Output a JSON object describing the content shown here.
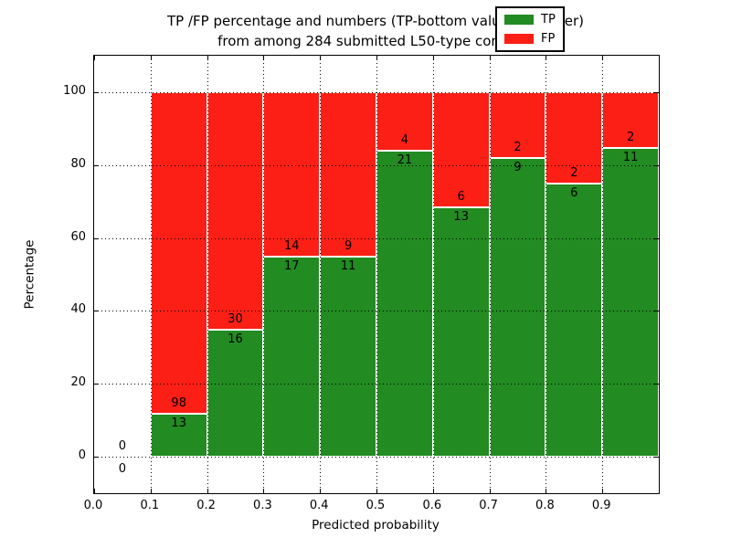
{
  "chart_data": {
    "type": "bar",
    "stacked": true,
    "title_line1": "TP /FP percentage and numbers (TP-bottom value, FP-upper)",
    "title_line2": "from among 284 submitted L50-type contacts",
    "xlabel": "Predicted probability",
    "ylabel": "Percentage",
    "xlim": [
      0.0,
      1.0
    ],
    "ylim": [
      -10,
      110
    ],
    "x_tick_values": [
      0.0,
      0.1,
      0.2,
      0.3,
      0.4,
      0.5,
      0.6,
      0.7,
      0.8,
      0.9
    ],
    "x_tick_labels": [
      "0.0",
      "0.1",
      "0.2",
      "0.3",
      "0.4",
      "0.5",
      "0.6",
      "0.7",
      "0.8",
      "0.9"
    ],
    "x_grid_values": [
      0.1,
      0.2,
      0.3,
      0.4,
      0.5,
      0.6,
      0.7,
      0.8,
      0.9
    ],
    "y_tick_values": [
      0,
      20,
      40,
      60,
      80,
      100
    ],
    "y_tick_labels": [
      "0",
      "20",
      "40",
      "60",
      "80",
      "100"
    ],
    "grid": "dotted",
    "legend_position": "upper right",
    "bins": [
      {
        "range": [
          0.0,
          0.1
        ],
        "tp": 0,
        "fp": 0
      },
      {
        "range": [
          0.1,
          0.2
        ],
        "tp": 13,
        "fp": 98
      },
      {
        "range": [
          0.2,
          0.3
        ],
        "tp": 16,
        "fp": 30
      },
      {
        "range": [
          0.3,
          0.4
        ],
        "tp": 17,
        "fp": 14
      },
      {
        "range": [
          0.4,
          0.5
        ],
        "tp": 11,
        "fp": 9
      },
      {
        "range": [
          0.5,
          0.6
        ],
        "tp": 21,
        "fp": 4
      },
      {
        "range": [
          0.6,
          0.7
        ],
        "tp": 13,
        "fp": 6
      },
      {
        "range": [
          0.7,
          0.8
        ],
        "tp": 9,
        "fp": 2
      },
      {
        "range": [
          0.8,
          0.9
        ],
        "tp": 6,
        "fp": 2
      },
      {
        "range": [
          0.9,
          1.0
        ],
        "tp": 11,
        "fp": 2
      }
    ],
    "legend": [
      {
        "label": "TP",
        "color": "#228b22"
      },
      {
        "label": "FP",
        "color": "#fb1f15"
      }
    ],
    "colors": {
      "tp": "#228b22",
      "fp": "#fb1f15",
      "axis": "#000000",
      "background": "#ffffff"
    }
  }
}
